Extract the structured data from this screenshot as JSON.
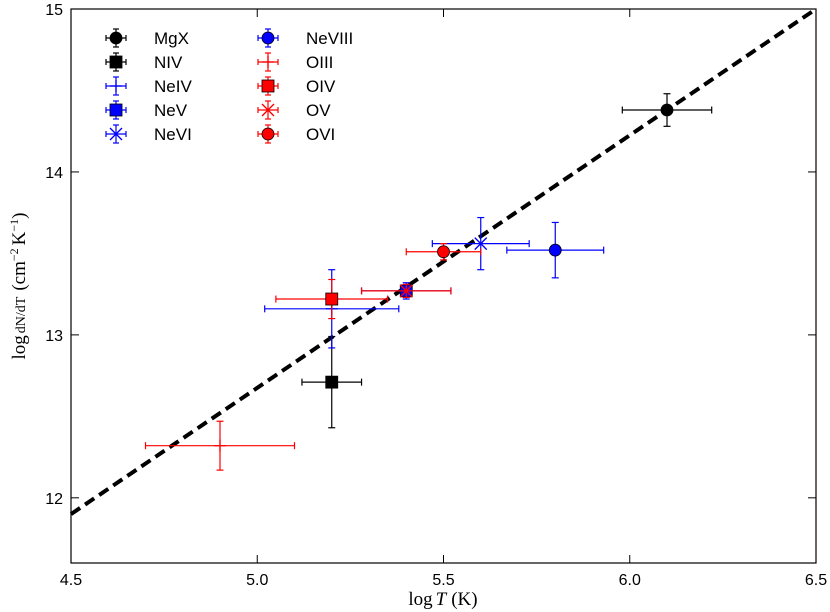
{
  "chart_data": {
    "type": "scatter",
    "xlabel": "log T (K)",
    "ylabel": "log dN/dT (cm⁻² K⁻¹)",
    "xlim": [
      4.5,
      6.5
    ],
    "ylim": [
      11.6,
      15.0
    ],
    "xticks": [
      "4.5",
      "5.0",
      "5.5",
      "6.0",
      "6.5"
    ],
    "yticks": [
      "12",
      "13",
      "14",
      "15"
    ],
    "grid": false,
    "legend_position": "top-left",
    "fit_line": {
      "style": "dashed",
      "color": "#000000",
      "x": [
        4.5,
        6.5
      ],
      "y": [
        11.9,
        15.0
      ]
    },
    "series": [
      {
        "name": "MgX",
        "color": "#000000",
        "marker": "circle",
        "x": 6.1,
        "y": 14.38,
        "xerr": 0.12,
        "yerr": 0.1
      },
      {
        "name": "NIV",
        "color": "#000000",
        "marker": "square",
        "x": 5.2,
        "y": 12.71,
        "xerr": 0.08,
        "yerr": 0.28
      },
      {
        "name": "NeIV",
        "color": "#0000ff",
        "marker": "plus",
        "x": 5.2,
        "y": 13.16,
        "xerr": 0.18,
        "yerr": 0.24
      },
      {
        "name": "NeV",
        "color": "#0000ff",
        "marker": "square",
        "x": 5.4,
        "y": 13.27,
        "xerr": 0.12,
        "yerr": 0.05
      },
      {
        "name": "NeVI",
        "color": "#0000ff",
        "marker": "x",
        "x": 5.6,
        "y": 13.56,
        "xerr": 0.13,
        "yerr": 0.16
      },
      {
        "name": "NeVIII",
        "color": "#0000ff",
        "marker": "circle",
        "x": 5.8,
        "y": 13.52,
        "xerr": 0.13,
        "yerr": 0.17
      },
      {
        "name": "OIII",
        "color": "#ff0000",
        "marker": "plus",
        "x": 4.9,
        "y": 12.32,
        "xerr": 0.2,
        "yerr": 0.15
      },
      {
        "name": "OIV",
        "color": "#ff0000",
        "marker": "square",
        "x": 5.2,
        "y": 13.22,
        "xerr": 0.15,
        "yerr": 0.12
      },
      {
        "name": "OV",
        "color": "#ff0000",
        "marker": "x",
        "x": 5.4,
        "y": 13.27,
        "xerr": 0.12,
        "yerr": 0.04
      },
      {
        "name": "OVI",
        "color": "#ff0000",
        "marker": "circle",
        "x": 5.5,
        "y": 13.51,
        "xerr": 0.1,
        "yerr": 0.05
      }
    ]
  }
}
